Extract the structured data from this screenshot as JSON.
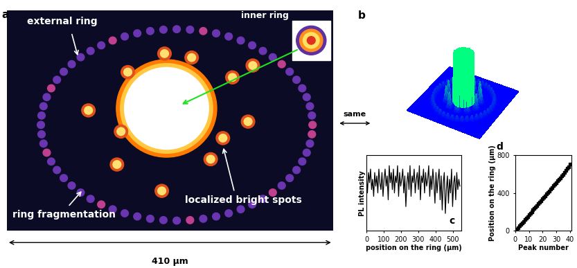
{
  "panels": {
    "a": {
      "label": "a",
      "annotations": [
        "external ring",
        "inner ring",
        "ring fragmentation",
        "localized bright spots"
      ],
      "scale_bar": "410 µm"
    },
    "b": {
      "label": "b",
      "annotation": "same"
    }
  },
  "chart_data": [
    {
      "type": "line",
      "label": "c",
      "x_label": "position on the ring (µm)",
      "y_label": "PL intensity",
      "color": "#000000",
      "line_style": "solid",
      "tick_labels": "x",
      "x": [
        0,
        6,
        12,
        18,
        24,
        30,
        36,
        42,
        48,
        54,
        60,
        66,
        72,
        78,
        84,
        90,
        96,
        102,
        108,
        114,
        120,
        126,
        132,
        138,
        144,
        150,
        156,
        162,
        168,
        174,
        180,
        186,
        192,
        198,
        204,
        210,
        216,
        222,
        228,
        234,
        240,
        246,
        252,
        258,
        264,
        270,
        276,
        282,
        288,
        294,
        300,
        306,
        312,
        318,
        324,
        330,
        336,
        342,
        348,
        354,
        360,
        366,
        372,
        378,
        384,
        390,
        396,
        402,
        408,
        414,
        420,
        426,
        432,
        438,
        444,
        450,
        456,
        462,
        468,
        474,
        480,
        486,
        492,
        498,
        504,
        510,
        516,
        522,
        528,
        534,
        540
      ],
      "values": [
        0.8,
        0.55,
        0.85,
        0.7,
        0.9,
        0.6,
        0.75,
        0.5,
        0.85,
        0.65,
        0.8,
        0.55,
        0.9,
        0.7,
        0.6,
        0.85,
        0.5,
        0.75,
        0.9,
        0.65,
        0.8,
        0.45,
        0.95,
        0.7,
        0.85,
        0.6,
        0.9,
        0.55,
        0.8,
        0.7,
        0.95,
        0.5,
        0.85,
        0.65,
        0.75,
        0.9,
        0.55,
        0.8,
        0.35,
        0.7,
        0.85,
        0.6,
        0.95,
        0.5,
        0.8,
        0.7,
        0.9,
        0.55,
        0.75,
        0.85,
        0.6,
        0.95,
        0.45,
        0.8,
        0.7,
        0.9,
        0.55,
        0.85,
        0.65,
        0.75,
        0.95,
        0.5,
        0.8,
        0.6,
        0.9,
        0.7,
        0.4,
        0.85,
        0.55,
        0.75,
        0.9,
        0.45,
        0.8,
        0.3,
        0.7,
        0.85,
        0.25,
        0.6,
        0.8,
        0.4,
        0.75,
        0.55,
        0.9,
        0.35,
        0.7,
        0.8,
        0.45,
        0.85,
        0.6,
        0.75,
        0.65
      ],
      "xlim": [
        0,
        550
      ],
      "xticks": [
        0,
        100,
        200,
        300,
        400,
        500
      ],
      "ylim": [
        0,
        1.1
      ]
    },
    {
      "type": "line",
      "label": "d",
      "x_label": "Peak number",
      "y_label": "Position on the ring (µm)",
      "color": "#000000",
      "marker": "square",
      "line_style": "solid",
      "x": [
        1,
        2,
        3,
        4,
        5,
        6,
        7,
        8,
        9,
        10,
        11,
        12,
        13,
        14,
        15,
        16,
        17,
        18,
        19,
        20,
        21,
        22,
        23,
        24,
        25,
        26,
        27,
        28,
        29,
        30,
        31,
        32,
        33,
        34,
        35,
        36,
        37,
        38,
        39,
        40
      ],
      "values": [
        12,
        30,
        48,
        62,
        80,
        98,
        115,
        135,
        150,
        168,
        182,
        200,
        218,
        236,
        250,
        268,
        285,
        300,
        318,
        335,
        352,
        370,
        390,
        405,
        420,
        440,
        458,
        475,
        490,
        510,
        528,
        545,
        562,
        580,
        600,
        618,
        640,
        660,
        680,
        705
      ],
      "xlim": [
        0,
        41
      ],
      "xticks": [
        0,
        10,
        20,
        30,
        40
      ],
      "ylim": [
        0,
        800
      ],
      "yticks": [
        0,
        400,
        800
      ]
    }
  ]
}
